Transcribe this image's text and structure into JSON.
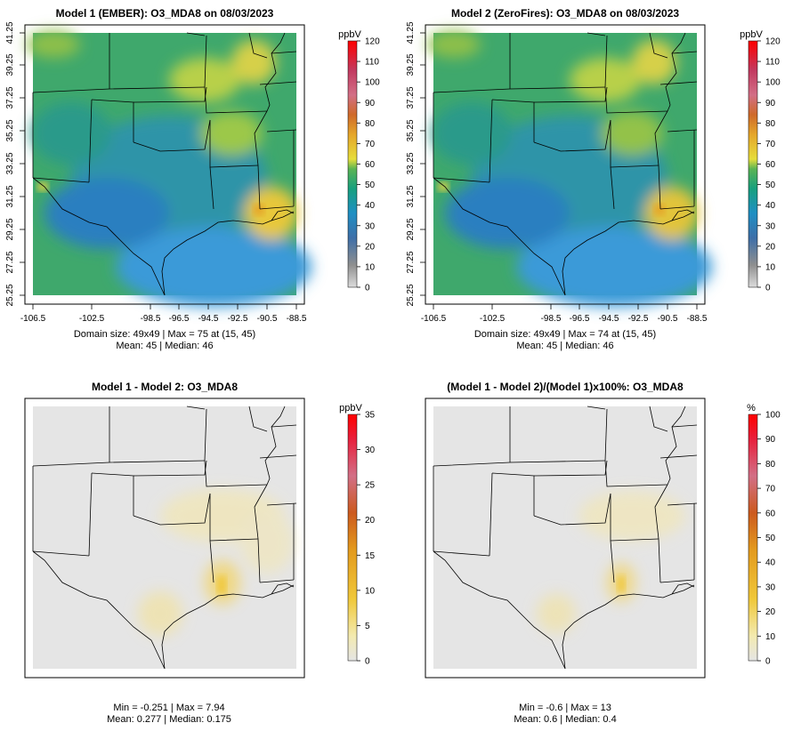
{
  "chart_data": [
    {
      "type": "heatmap",
      "title": "Model 1 (EMBER): O3_MDA8 on 08/03/2023",
      "colorbar_unit": "ppbV",
      "colorbar_ticks": [
        "0",
        "10",
        "20",
        "30",
        "40",
        "50",
        "60",
        "70",
        "80",
        "90",
        "100",
        "110",
        "120"
      ],
      "colorbar_range": [
        0,
        120
      ],
      "x_ticks": [
        "-106.5",
        "-102.5",
        "-98.5",
        "-96.5",
        "-94.5",
        "-92.5",
        "-90.5",
        "-88.5"
      ],
      "y_ticks": [
        "25.25",
        "27.25",
        "29.25",
        "31.25",
        "33.25",
        "35.25",
        "37.25",
        "39.25",
        "41.25"
      ],
      "stats_line1": "Domain size: 49x49 | Max = 75 at (15, 45)",
      "stats_line2": "Mean: 45 |  Median: 46",
      "domain_size": "49x49",
      "max": 75,
      "max_at": "(15, 45)",
      "mean": 45,
      "median": 46
    },
    {
      "type": "heatmap",
      "title": "Model 2 (ZeroFires): O3_MDA8 on 08/03/2023",
      "colorbar_unit": "ppbV",
      "colorbar_ticks": [
        "0",
        "10",
        "20",
        "30",
        "40",
        "50",
        "60",
        "70",
        "80",
        "90",
        "100",
        "110",
        "120"
      ],
      "colorbar_range": [
        0,
        120
      ],
      "x_ticks": [
        "-106.5",
        "-102.5",
        "-98.5",
        "-96.5",
        "-94.5",
        "-92.5",
        "-90.5",
        "-88.5"
      ],
      "y_ticks": [
        "25.25",
        "27.25",
        "29.25",
        "31.25",
        "33.25",
        "35.25",
        "37.25",
        "39.25",
        "41.25"
      ],
      "stats_line1": "Domain size: 49x49 | Max = 74 at (15, 45)",
      "stats_line2": "Mean: 45 |  Median: 46",
      "domain_size": "49x49",
      "max": 74,
      "max_at": "(15, 45)",
      "mean": 45,
      "median": 46
    },
    {
      "type": "heatmap",
      "title": "Model 1 - Model 2: O3_MDA8",
      "colorbar_unit": "ppbV",
      "colorbar_ticks": [
        "0",
        "5",
        "10",
        "15",
        "20",
        "25",
        "30",
        "35"
      ],
      "colorbar_range": [
        0,
        35
      ],
      "stats_line1": "Min = -0.251 | Max = 7.94",
      "stats_line2": "Mean: 0.277 |  Median: 0.175",
      "min": -0.251,
      "max": 7.94,
      "mean": 0.277,
      "median": 0.175
    },
    {
      "type": "heatmap",
      "title": "(Model 1 - Model 2)/(Model 1)x100%: O3_MDA8",
      "colorbar_unit": "%",
      "colorbar_ticks": [
        "0",
        "10",
        "20",
        "30",
        "40",
        "50",
        "60",
        "70",
        "80",
        "90",
        "100"
      ],
      "colorbar_range": [
        0,
        100
      ],
      "stats_line1": "Min = -0.6 | Max = 13",
      "stats_line2": "Mean: 0.6 |  Median: 0.4",
      "min": -0.6,
      "max": 13,
      "mean": 0.6,
      "median": 0.4
    }
  ],
  "colors": {
    "background": "#ffffff",
    "diff_background": "#e5e5e5",
    "conc_ramp": [
      "#dcdcdc",
      "#8f8f8f",
      "#2b6fb0",
      "#1f8fc4",
      "#2aa87f",
      "#46b05a",
      "#e6dd3c",
      "#e5a62a",
      "#cc3b2c",
      "#d26f86",
      "#b8204a",
      "#ff0000"
    ],
    "diff_ramp": [
      "#e5e5e5",
      "#f3eab0",
      "#f0c83a",
      "#e39a1e",
      "#cc5a1e",
      "#d26f86",
      "#e8203c",
      "#ff0000"
    ]
  }
}
